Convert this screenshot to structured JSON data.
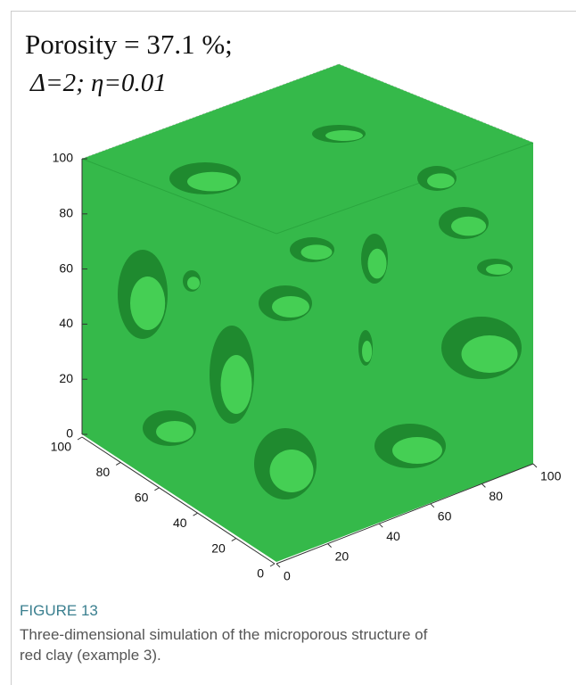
{
  "chart_data": {
    "type": "surface3d",
    "title": "Porosity = 37.1 %;",
    "subtitle": "Δ=2; η=0.01",
    "color": "#35b94a",
    "xlim": [
      0,
      100
    ],
    "xticks": [
      0,
      20,
      40,
      60,
      80,
      100
    ],
    "ylim": [
      0,
      100
    ],
    "yticks": [
      0,
      20,
      40,
      60,
      80,
      100
    ],
    "zlim": [
      0,
      100
    ],
    "zticks": [
      0,
      20,
      40,
      60,
      80,
      100
    ]
  },
  "caption": {
    "label": "FIGURE 13",
    "text": "Three-dimensional simulation of the microporous structure of red clay (example 3)."
  }
}
